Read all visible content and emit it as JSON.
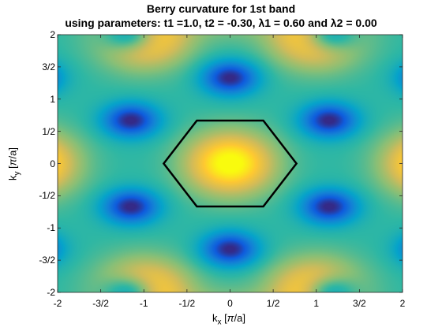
{
  "title": {
    "line1": "Berry curvature for 1st band",
    "line2": "using parameters: t1 =1.0, t2 = -0.30, λ1 = 0.60 and λ2 = 0.00"
  },
  "chart_data": {
    "type": "heatmap",
    "title": "Berry curvature for 1st band",
    "subtitle": "using parameters: t1 =1.0, t2 = -0.30, λ1 = 0.60 and λ2 = 0.00",
    "xlabel": "k_x [π/a]",
    "ylabel": "k_y [π/a]",
    "xlim": [
      -2,
      2
    ],
    "ylim": [
      -2,
      2
    ],
    "x_ticks": [
      -2,
      -1.5,
      -1,
      -0.5,
      0,
      0.5,
      1,
      1.5,
      2
    ],
    "x_tick_labels": [
      "-2",
      "-3/2",
      "-1",
      "-1/2",
      "0",
      "1/2",
      "1",
      "3/2",
      "2"
    ],
    "y_ticks": [
      -2,
      -1.5,
      -1,
      -0.5,
      0,
      0.5,
      1,
      1.5,
      2
    ],
    "y_tick_labels": [
      "-2",
      "-3/2",
      "-1",
      "-1/2",
      "0",
      "1/2",
      "1",
      "3/2",
      "2"
    ],
    "colormap": "parula",
    "colors": [
      "#352a87",
      "#0f5cdd",
      "#1481d6",
      "#06a4ca",
      "#2eb7a4",
      "#87bf77",
      "#d1bb59",
      "#fec832",
      "#f9fb0e"
    ],
    "brillouin_zone": {
      "shape": "hexagon",
      "vertices": [
        [
          0.77,
          0
        ],
        [
          0.385,
          0.667
        ],
        [
          -0.385,
          0.667
        ],
        [
          -0.77,
          0
        ],
        [
          -0.385,
          -0.667
        ],
        [
          0.385,
          -0.667
        ]
      ],
      "color": "#000000"
    },
    "maxima": [
      [
        0,
        0
      ],
      [
        -1.0,
        2.0
      ],
      [
        1.0,
        2.0
      ],
      [
        -1.0,
        -2.0
      ],
      [
        1.0,
        -2.0
      ]
    ],
    "minima": [
      [
        0,
        1.33
      ],
      [
        0,
        -1.33
      ],
      [
        -1.15,
        0.67
      ],
      [
        1.15,
        0.67
      ],
      [
        -1.15,
        -0.67
      ],
      [
        1.15,
        -0.67
      ]
    ]
  }
}
